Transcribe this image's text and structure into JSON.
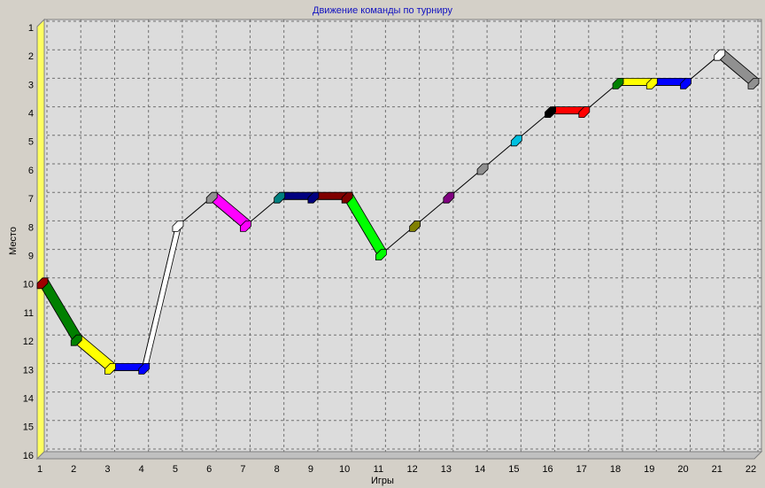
{
  "chart_data": {
    "type": "line3d",
    "title": "Движение команды по турниру",
    "x_label": "Игры",
    "y_label": "Место",
    "x": [
      1,
      2,
      3,
      4,
      5,
      6,
      7,
      8,
      9,
      10,
      11,
      12,
      13,
      14,
      15,
      16,
      17,
      18,
      19,
      20,
      21,
      22
    ],
    "xlim": [
      1,
      22
    ],
    "xticks": [
      1,
      2,
      3,
      4,
      5,
      6,
      7,
      8,
      9,
      10,
      11,
      12,
      13,
      14,
      15,
      16,
      17,
      18,
      19,
      20,
      21,
      22
    ],
    "ylim": [
      16,
      1
    ],
    "yticks": [
      1,
      2,
      3,
      4,
      5,
      6,
      7,
      8,
      9,
      10,
      11,
      12,
      13,
      14,
      15,
      16
    ],
    "grid": true,
    "series": [
      {
        "values": [
          10,
          12,
          13,
          13,
          8,
          7,
          8,
          7,
          7,
          7,
          9,
          8,
          7,
          6,
          5,
          4,
          4,
          3,
          3,
          3,
          2,
          3
        ],
        "color": "#000000",
        "point_colors": [
          "#a00000",
          "#008000",
          "#ffff00",
          "#0000ff",
          "#ffffff",
          "#909090",
          "#ff00ff",
          "#008080",
          "#000080",
          "#800000",
          "#00ff00",
          "#808000",
          "#800080",
          "#909090",
          "#00c0e0",
          "#000000",
          "#ff0000",
          "#008000",
          "#ffff00",
          "#0000ff",
          "#ffffff",
          "#909090"
        ],
        "segment_colors": [
          "#008000",
          "#ffff00",
          "#0000ff",
          "#ffffff",
          null,
          "#ff00ff",
          null,
          "#000080",
          "#800000",
          "#00ff00",
          null,
          null,
          null,
          null,
          null,
          "#ff0000",
          null,
          "#ffff00",
          "#0000ff",
          null,
          "#909090"
        ]
      }
    ]
  }
}
